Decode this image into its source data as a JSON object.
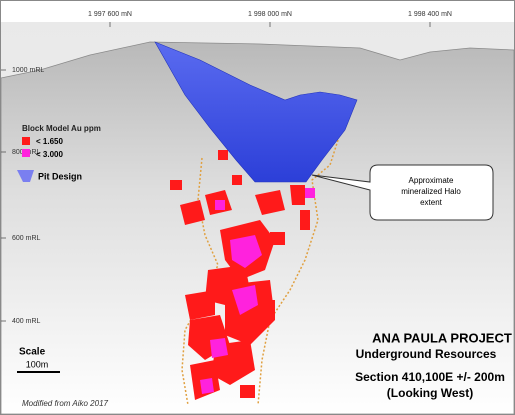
{
  "northings": [
    "1 997 600 mN",
    "1 998 000 mN",
    "1 998 400 mN"
  ],
  "elevations": [
    "1000 mRL",
    "800 mRL",
    "600 mRL",
    "400 mRL"
  ],
  "legend": {
    "title": "Block Model Au ppm",
    "items": [
      "< 1.650",
      "< 3.000",
      "Pit Design"
    ]
  },
  "callout": [
    "Approximate",
    "mineralized Halo",
    "extent"
  ],
  "title_block": [
    "ANA PAULA PROJECT",
    "Underground Resources",
    "Section 410,100E +/- 200m",
    "(Looking West)"
  ],
  "scale": {
    "label": "Scale",
    "length": "100m"
  },
  "source": "Modified from Aiko 2017"
}
